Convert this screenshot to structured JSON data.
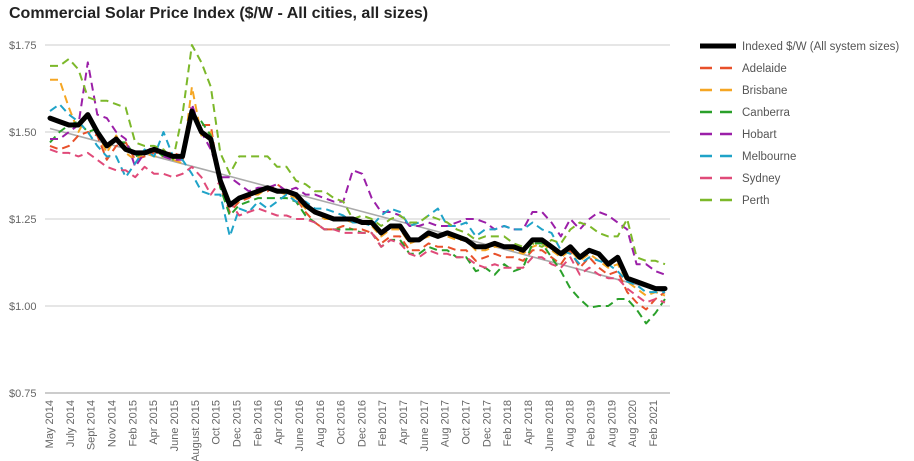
{
  "title": "Commercial Solar Price Index ($/W - All cities, all sizes)",
  "chart_data": {
    "type": "line",
    "title": "Commercial Solar Price Index ($/W - All cities, all sizes)",
    "ylim": [
      0.75,
      1.75
    ],
    "y_ticks": [
      "$0.75",
      "$1.00",
      "$1.25",
      "$1.50",
      "$1.75"
    ],
    "grid": true,
    "legend_position": "right",
    "trendline": {
      "color": "#aaaaaa",
      "start": 1.51,
      "end": 1.04
    },
    "x_ticks": [
      "May 2014",
      "July 2014",
      "Sept 2014",
      "Nov 2014",
      "Feb 2015",
      "Apr 2015",
      "June 2015",
      "August 2015",
      "Oct 2015",
      "Dec 2015",
      "Feb 2016",
      "Apr 2016",
      "June 2016",
      "Aug 2016",
      "Oct 2016",
      "Dec 2016",
      "Feb 2017",
      "Apr 2017",
      "June 2017",
      "Aug 2017",
      "Oct 2017",
      "Dec 2017",
      "Feb 2018",
      "Apr 2018",
      "June 2018",
      "Aug 2018",
      "Feb 2019",
      "Aug 2019",
      "Aug 2020",
      "Feb 2021"
    ],
    "series": [
      {
        "name": "Indexed $/W (All system sizes)",
        "color": "#000000",
        "width": 5,
        "dash": false,
        "values": [
          1.54,
          1.53,
          1.52,
          1.52,
          1.55,
          1.5,
          1.46,
          1.48,
          1.45,
          1.44,
          1.44,
          1.45,
          1.44,
          1.43,
          1.43,
          1.56,
          1.5,
          1.48,
          1.36,
          1.29,
          1.31,
          1.32,
          1.33,
          1.34,
          1.33,
          1.33,
          1.32,
          1.29,
          1.27,
          1.26,
          1.25,
          1.25,
          1.25,
          1.24,
          1.24,
          1.21,
          1.23,
          1.23,
          1.19,
          1.19,
          1.21,
          1.2,
          1.21,
          1.2,
          1.19,
          1.17,
          1.17,
          1.18,
          1.17,
          1.17,
          1.16,
          1.19,
          1.19,
          1.17,
          1.15,
          1.17,
          1.14,
          1.16,
          1.15,
          1.12,
          1.14,
          1.08,
          1.07,
          1.06,
          1.05,
          1.05
        ]
      },
      {
        "name": "Adelaide",
        "color": "#e8502a",
        "width": 2,
        "dash": true,
        "values": [
          1.46,
          1.45,
          1.46,
          1.49,
          1.5,
          1.49,
          1.42,
          1.46,
          1.47,
          1.42,
          1.43,
          1.44,
          1.44,
          1.44,
          1.43,
          1.55,
          1.52,
          1.52,
          1.34,
          1.27,
          1.3,
          1.31,
          1.33,
          1.33,
          1.35,
          1.33,
          1.31,
          1.27,
          1.24,
          1.22,
          1.22,
          1.23,
          1.22,
          1.22,
          1.21,
          1.18,
          1.2,
          1.2,
          1.16,
          1.16,
          1.18,
          1.17,
          1.17,
          1.16,
          1.16,
          1.13,
          1.14,
          1.15,
          1.14,
          1.14,
          1.13,
          1.16,
          1.16,
          1.14,
          1.12,
          1.16,
          1.11,
          1.14,
          1.11,
          1.09,
          1.1,
          1.04,
          1.01,
          0.99,
          1.02,
          1.04
        ]
      },
      {
        "name": "Brisbane",
        "color": "#f5a623",
        "width": 2,
        "dash": true,
        "values": [
          1.65,
          1.65,
          1.57,
          1.5,
          1.55,
          1.5,
          1.44,
          1.49,
          1.44,
          1.42,
          1.44,
          1.43,
          1.43,
          1.42,
          1.41,
          1.63,
          1.49,
          1.5,
          1.34,
          1.3,
          1.3,
          1.32,
          1.32,
          1.34,
          1.33,
          1.32,
          1.31,
          1.28,
          1.27,
          1.25,
          1.25,
          1.25,
          1.24,
          1.24,
          1.23,
          1.2,
          1.22,
          1.22,
          1.18,
          1.19,
          1.2,
          1.2,
          1.2,
          1.19,
          1.19,
          1.16,
          1.16,
          1.17,
          1.17,
          1.16,
          1.15,
          1.17,
          1.18,
          1.16,
          1.14,
          1.16,
          1.13,
          1.15,
          1.13,
          1.11,
          1.12,
          1.07,
          1.05,
          1.03,
          1.04,
          1.03
        ]
      },
      {
        "name": "Canberra",
        "color": "#2aa02a",
        "width": 2,
        "dash": true,
        "values": [
          1.47,
          1.5,
          1.52,
          1.53,
          1.5,
          1.51,
          1.46,
          1.47,
          1.47,
          1.43,
          1.44,
          1.45,
          1.43,
          1.43,
          1.43,
          1.55,
          1.53,
          1.49,
          1.34,
          1.26,
          1.29,
          1.3,
          1.31,
          1.31,
          1.31,
          1.31,
          1.3,
          1.26,
          1.24,
          1.22,
          1.22,
          1.22,
          1.22,
          1.21,
          1.21,
          1.17,
          1.19,
          1.19,
          1.15,
          1.15,
          1.17,
          1.16,
          1.16,
          1.14,
          1.14,
          1.1,
          1.11,
          1.09,
          1.12,
          1.1,
          1.11,
          1.18,
          1.18,
          1.14,
          1.1,
          1.05,
          1.02,
          0.995,
          1.0,
          1.0,
          1.02,
          1.02,
          0.99,
          0.95,
          0.98,
          1.02
        ]
      },
      {
        "name": "Hobart",
        "color": "#9b1fa8",
        "width": 2,
        "dash": true,
        "values": [
          1.48,
          1.48,
          1.5,
          1.52,
          1.7,
          1.55,
          1.54,
          1.5,
          1.48,
          1.4,
          1.44,
          1.46,
          1.43,
          1.42,
          1.42,
          1.58,
          1.5,
          1.45,
          1.37,
          1.37,
          1.35,
          1.33,
          1.34,
          1.34,
          1.35,
          1.33,
          1.34,
          1.32,
          1.32,
          1.31,
          1.3,
          1.3,
          1.39,
          1.38,
          1.31,
          1.27,
          1.27,
          1.26,
          1.23,
          1.23,
          1.24,
          1.23,
          1.23,
          1.24,
          1.25,
          1.25,
          1.24,
          1.22,
          1.23,
          1.22,
          1.22,
          1.27,
          1.27,
          1.24,
          1.2,
          1.25,
          1.22,
          1.25,
          1.27,
          1.26,
          1.24,
          1.22,
          1.12,
          1.12,
          1.1,
          1.09
        ]
      },
      {
        "name": "Melbourne",
        "color": "#1fa3c8",
        "width": 2,
        "dash": true,
        "values": [
          1.56,
          1.58,
          1.55,
          1.53,
          1.5,
          1.46,
          1.43,
          1.43,
          1.37,
          1.41,
          1.45,
          1.43,
          1.5,
          1.43,
          1.42,
          1.38,
          1.33,
          1.32,
          1.32,
          1.2,
          1.28,
          1.27,
          1.3,
          1.28,
          1.3,
          1.32,
          1.3,
          1.3,
          1.28,
          1.28,
          1.27,
          1.26,
          1.24,
          1.24,
          1.23,
          1.26,
          1.28,
          1.27,
          1.23,
          1.24,
          1.26,
          1.28,
          1.23,
          1.23,
          1.24,
          1.2,
          1.22,
          1.22,
          1.23,
          1.22,
          1.22,
          1.24,
          1.22,
          1.21,
          1.16,
          1.15,
          1.12,
          1.14,
          1.13,
          1.12,
          1.1,
          1.07,
          1.06,
          1.04,
          1.04,
          1.04
        ]
      },
      {
        "name": "Sydney",
        "color": "#e04a79",
        "width": 2,
        "dash": true,
        "values": [
          1.45,
          1.44,
          1.44,
          1.43,
          1.44,
          1.42,
          1.4,
          1.39,
          1.39,
          1.37,
          1.4,
          1.38,
          1.38,
          1.37,
          1.38,
          1.4,
          1.37,
          1.32,
          1.36,
          1.3,
          1.26,
          1.27,
          1.28,
          1.27,
          1.26,
          1.26,
          1.25,
          1.25,
          1.24,
          1.22,
          1.22,
          1.21,
          1.21,
          1.21,
          1.21,
          1.17,
          1.19,
          1.18,
          1.15,
          1.14,
          1.16,
          1.15,
          1.15,
          1.14,
          1.14,
          1.12,
          1.11,
          1.12,
          1.11,
          1.11,
          1.11,
          1.14,
          1.14,
          1.12,
          1.11,
          1.14,
          1.09,
          1.11,
          1.09,
          1.08,
          1.08,
          1.05,
          1.03,
          1.01,
          1.02,
          1.01
        ]
      },
      {
        "name": "Perth",
        "color": "#7cb82a",
        "width": 2,
        "dash": true,
        "values": [
          1.69,
          1.69,
          1.71,
          1.68,
          1.6,
          1.59,
          1.59,
          1.58,
          1.57,
          1.47,
          1.46,
          1.46,
          1.45,
          1.42,
          1.55,
          1.75,
          1.7,
          1.63,
          1.44,
          1.38,
          1.43,
          1.43,
          1.43,
          1.43,
          1.4,
          1.4,
          1.36,
          1.35,
          1.33,
          1.33,
          1.31,
          1.3,
          1.25,
          1.26,
          1.25,
          1.23,
          1.25,
          1.26,
          1.24,
          1.24,
          1.26,
          1.25,
          1.24,
          1.22,
          1.21,
          1.19,
          1.2,
          1.2,
          1.2,
          1.18,
          1.17,
          1.18,
          1.17,
          1.19,
          1.18,
          1.22,
          1.24,
          1.23,
          1.21,
          1.2,
          1.2,
          1.25,
          1.14,
          1.13,
          1.13,
          1.12
        ]
      }
    ]
  }
}
